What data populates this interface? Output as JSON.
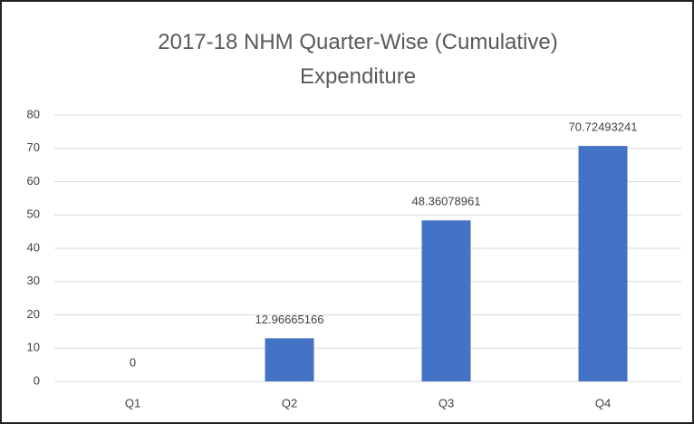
{
  "chart_data": {
    "type": "bar",
    "title": "2017-18 NHM Quarter-Wise (Cumulative) Expenditure",
    "categories": [
      "Q1",
      "Q2",
      "Q3",
      "Q4"
    ],
    "values": [
      0,
      12.96665166,
      48.36078961,
      70.72493241
    ],
    "color": "#4472c4",
    "ylim": [
      0,
      80
    ],
    "yticks": [
      0,
      10,
      20,
      30,
      40,
      50,
      60,
      70,
      80
    ],
    "grid": true
  }
}
